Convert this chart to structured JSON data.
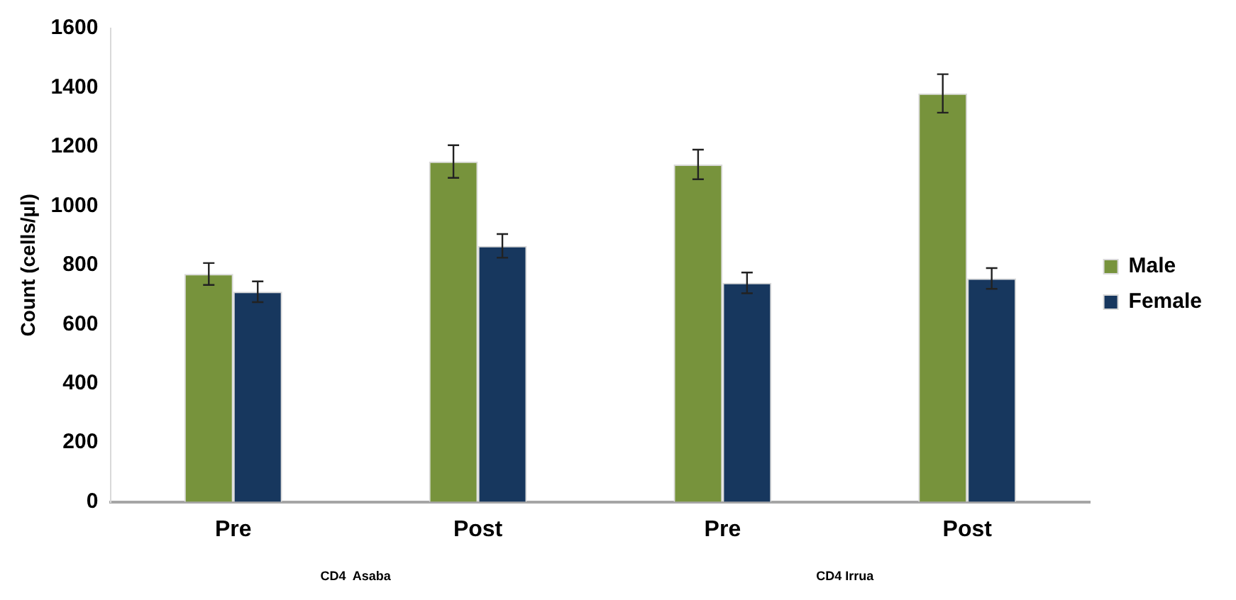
{
  "chart_data": {
    "type": "bar",
    "ylabel": "Count (cells/µl)",
    "categories": [
      "Pre",
      "Post",
      "Pre",
      "Post"
    ],
    "series": [
      {
        "name": "Male",
        "color": "#77933c",
        "values": [
          770,
          1150,
          1140,
          1380
        ],
        "errors": [
          37,
          55,
          50,
          65
        ]
      },
      {
        "name": "Female",
        "color": "#17375e",
        "values": [
          710,
          865,
          740,
          755
        ],
        "errors": [
          35,
          40,
          35,
          35
        ]
      }
    ],
    "ylim": [
      0,
      1600
    ],
    "yticks": [
      0,
      200,
      400,
      600,
      800,
      1000,
      1200,
      1400,
      1600
    ],
    "grid": false,
    "legend": "right",
    "annotations": [
      "CD4  Asaba",
      "CD4 Irrua"
    ]
  }
}
